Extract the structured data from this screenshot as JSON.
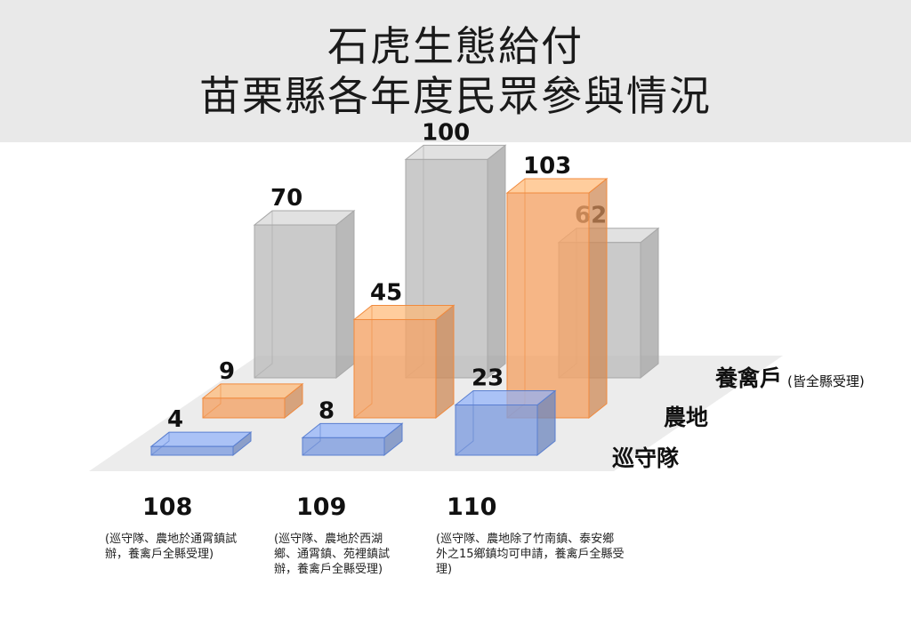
{
  "title_lines": [
    "石虎生態給付",
    "苗栗縣各年度民眾參與情況"
  ],
  "chart_data": {
    "type": "bar",
    "categories": [
      "108",
      "109",
      "110"
    ],
    "category_notes": [
      "(巡守隊、農地於通霄鎮試辦，養禽戶全縣受理)",
      "(巡守隊、農地於西湖鄉、通霄鎮、苑裡鎮試辦，養禽戶全縣受理)",
      "(巡守隊、農地除了竹南鎮、泰安鄉外之15鄉鎮均可申請，養禽戶全縣受理)"
    ],
    "series": [
      {
        "name": "養禽戶",
        "name_note": "(皆全縣受理)",
        "values": [
          70,
          100,
          62
        ],
        "color": "#bdbdbd"
      },
      {
        "name": "農地",
        "values": [
          9,
          45,
          103
        ],
        "color": "#f4a468"
      },
      {
        "name": "巡守隊",
        "values": [
          4,
          8,
          23
        ],
        "color": "#7f9ee0"
      }
    ],
    "ylim": [
      0,
      103
    ],
    "grid": false,
    "legend_placement": "right"
  }
}
